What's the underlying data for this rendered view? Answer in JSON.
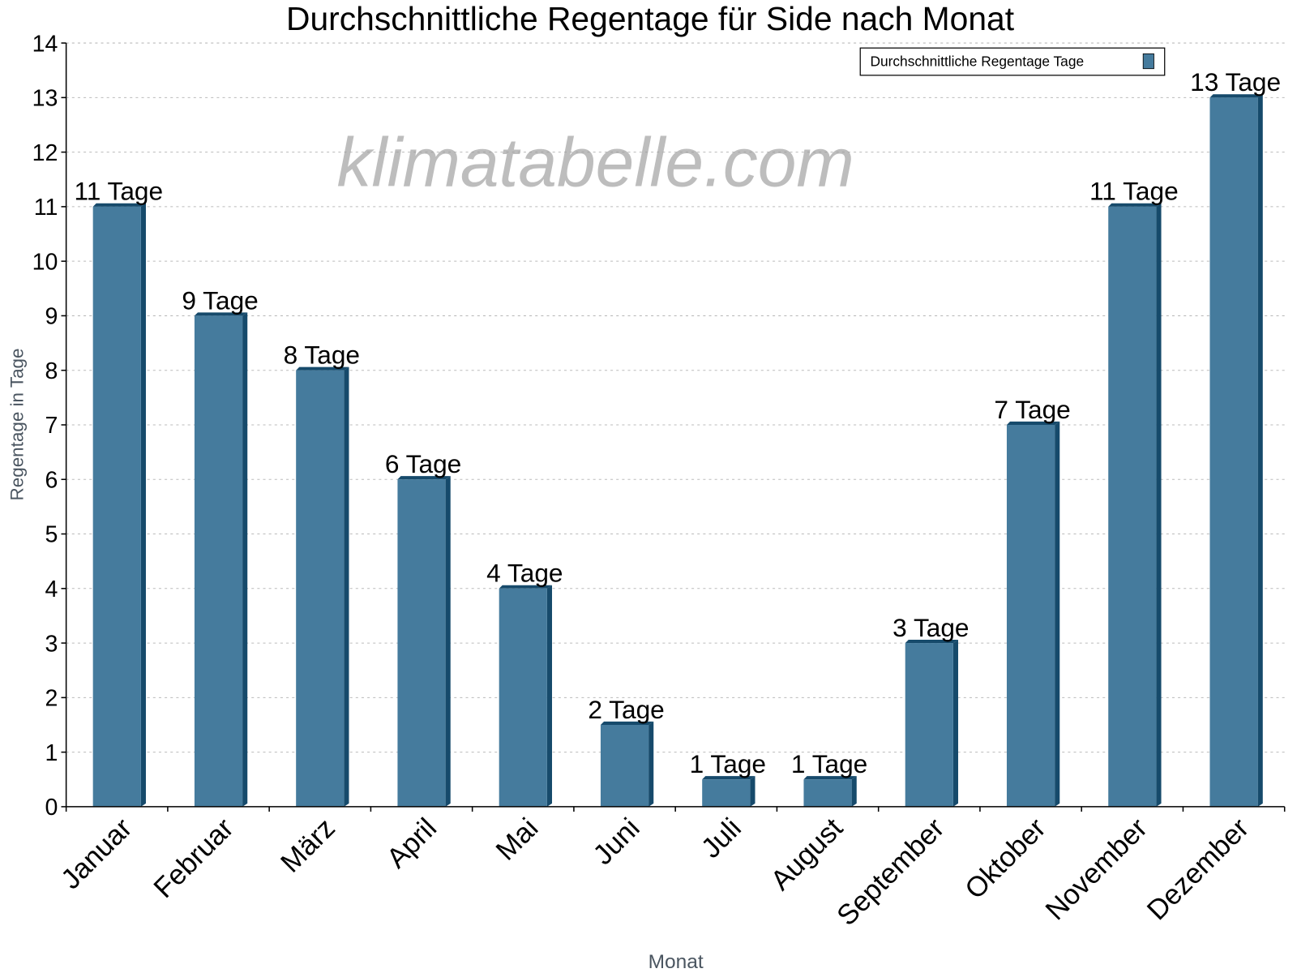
{
  "chart_data": {
    "type": "bar",
    "title": "Durchschnittliche Regentage für Side nach Monat",
    "xlabel": "Monat",
    "ylabel": "Regentage in Tage",
    "ylim": [
      0,
      14
    ],
    "yticks": [
      "0",
      "1",
      "2",
      "3",
      "4",
      "5",
      "6",
      "7",
      "8",
      "9",
      "10",
      "11",
      "12",
      "13",
      "14"
    ],
    "grid": true,
    "legend_position": "top-right",
    "categories": [
      "Januar",
      "Februar",
      "März",
      "April",
      "Mai",
      "Juni",
      "Juli",
      "August",
      "September",
      "Oktober",
      "November",
      "Dezember"
    ],
    "series": [
      {
        "name": "Durchschnittliche Regentage Tage",
        "values": [
          11,
          9,
          8,
          6,
          4,
          1.5,
          0.5,
          0.5,
          3,
          7,
          11,
          13
        ],
        "data_labels": [
          "11 Tage",
          "9 Tage",
          "8 Tage",
          "6 Tage",
          "4 Tage",
          "2 Tage",
          "1 Tage",
          "1 Tage",
          "3 Tage",
          "7 Tage",
          "11 Tage",
          "13 Tage"
        ],
        "color": "#457b9d",
        "side_color": "#164a6b"
      }
    ],
    "watermark": "klimatabelle.com"
  }
}
